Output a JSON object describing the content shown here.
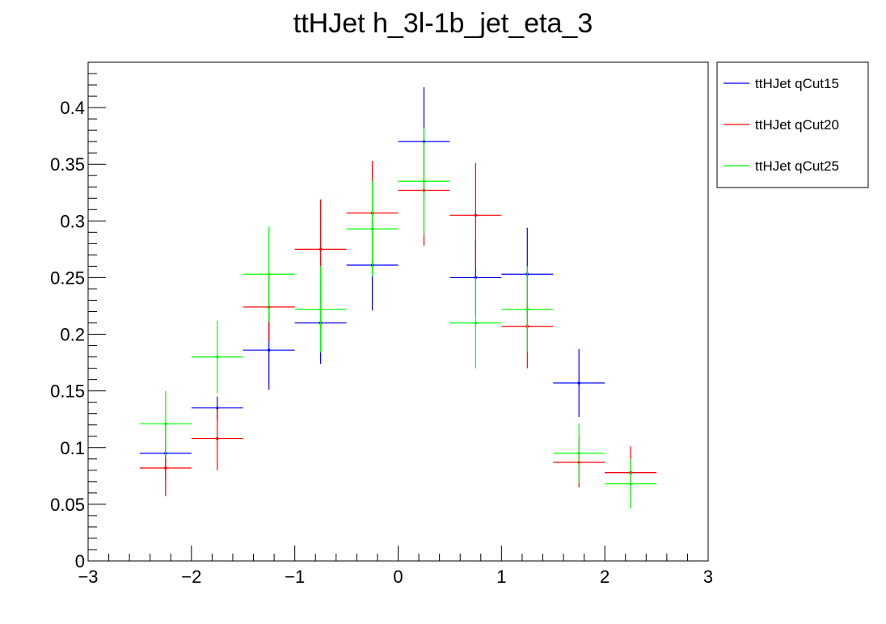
{
  "chart_data": {
    "type": "scatter",
    "title": "ttHJet h_3l-1b_jet_eta_3",
    "xlabel": "",
    "ylabel": "",
    "xlim": [
      -3,
      3
    ],
    "ylim": [
      0,
      0.44
    ],
    "x_ticks": [
      -3,
      -2,
      -1,
      0,
      1,
      2,
      3
    ],
    "x_tick_labels": [
      "−3",
      "−2",
      "−1",
      "0",
      "1",
      "2",
      "3"
    ],
    "y_ticks": [
      0,
      0.05,
      0.1,
      0.15,
      0.2,
      0.25,
      0.3,
      0.35,
      0.4
    ],
    "y_tick_labels": [
      "0",
      "0.05",
      "0.1",
      "0.15",
      "0.2",
      "0.25",
      "0.3",
      "0.35",
      "0.4"
    ],
    "x_bin_half_width": 0.25,
    "grid": false,
    "legend_position": "top-right, outside plot",
    "series": [
      {
        "name": "ttHJet qCut15",
        "color": "#0000ff",
        "x": [
          -2.25,
          -1.75,
          -1.25,
          -0.75,
          -0.25,
          0.25,
          0.75,
          1.25,
          1.75,
          2.25
        ],
        "y": [
          0.095,
          0.135,
          0.186,
          0.21,
          0.261,
          0.37,
          0.25,
          0.253,
          0.157,
          0.078
        ],
        "yerr": [
          0.024,
          0.01,
          0.035,
          0.036,
          0.04,
          0.048,
          0.033,
          0.041,
          0.03,
          0.005
        ]
      },
      {
        "name": "ttHJet qCut20",
        "color": "#ff0000",
        "x": [
          -2.25,
          -1.75,
          -1.25,
          -0.75,
          -0.25,
          0.25,
          0.75,
          1.25,
          1.75,
          2.25
        ],
        "y": [
          0.082,
          0.108,
          0.224,
          0.275,
          0.307,
          0.327,
          0.305,
          0.207,
          0.087,
          0.078
        ],
        "yerr": [
          0.025,
          0.028,
          0.03,
          0.044,
          0.046,
          0.049,
          0.046,
          0.037,
          0.022,
          0.023
        ]
      },
      {
        "name": "ttHJet qCut25",
        "color": "#00ff00",
        "x": [
          -2.25,
          -1.75,
          -1.25,
          -0.75,
          -0.25,
          0.25,
          0.75,
          1.25,
          1.75,
          2.25
        ],
        "y": [
          0.121,
          0.18,
          0.253,
          0.222,
          0.293,
          0.335,
          0.21,
          0.222,
          0.095,
          0.068
        ],
        "yerr": [
          0.029,
          0.032,
          0.042,
          0.038,
          0.042,
          0.047,
          0.04,
          0.038,
          0.026,
          0.022
        ]
      }
    ]
  }
}
